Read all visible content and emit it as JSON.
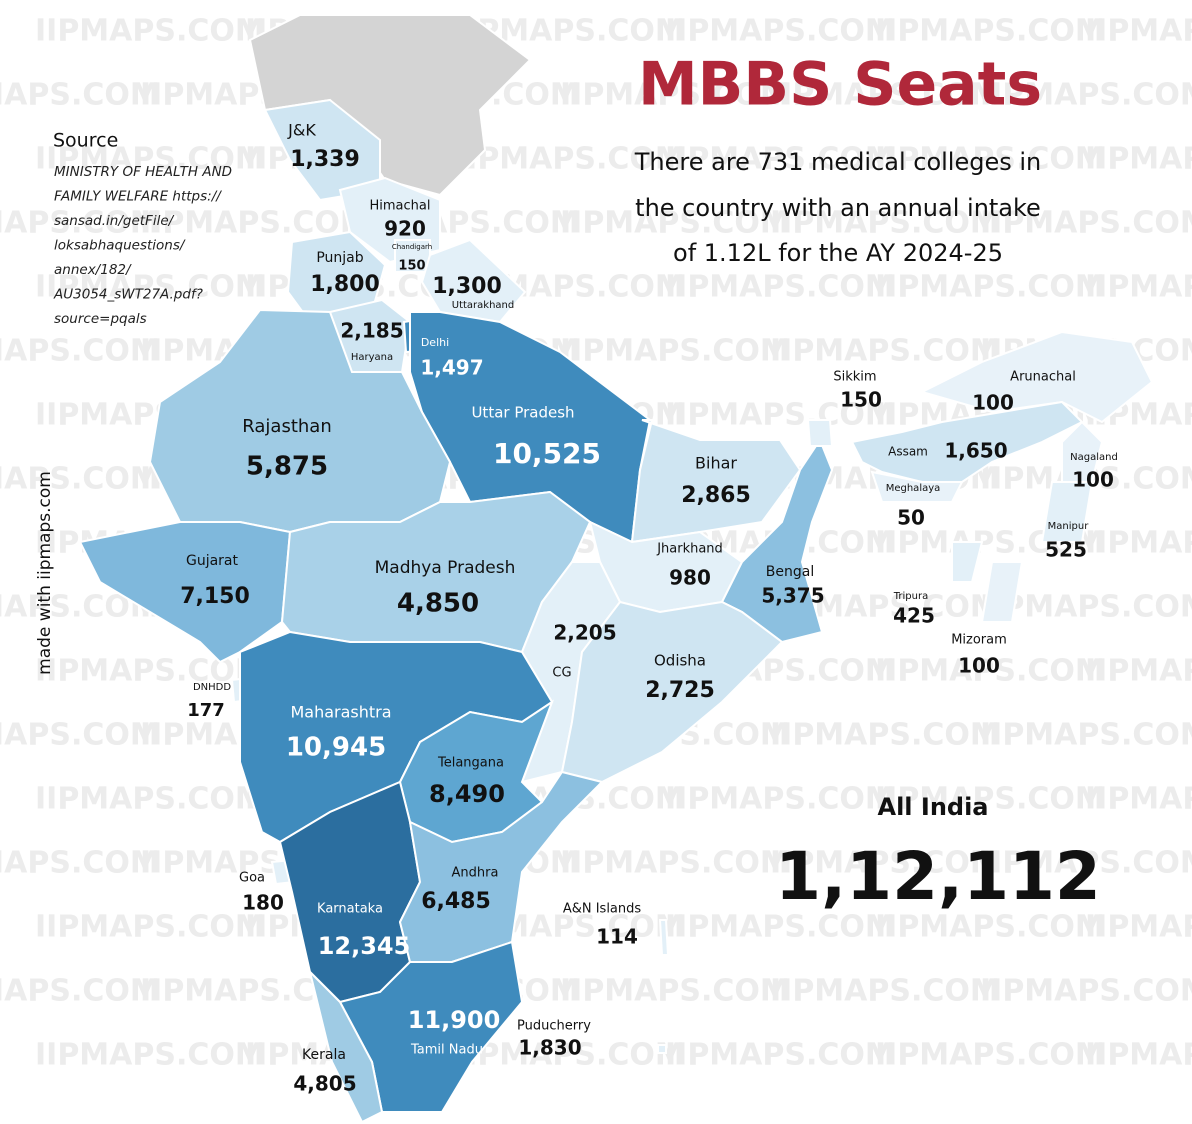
{
  "title": "MBBS Seats",
  "subtitle": [
    "There are 731 medical colleges in",
    "the country with an annual intake",
    "of 1.12L for the AY 2024-25"
  ],
  "source": {
    "heading": "Source",
    "lines": [
      "MINISTRY OF HEALTH AND",
      "FAMILY WELFARE https://",
      "sansad.in/getFile/",
      "loksabhaquestions/",
      "annex/182/",
      "AU3054_sWT27A.pdf?",
      "source=pqals"
    ]
  },
  "credit": "made with iipmaps.com",
  "watermark": "IIPMAPS.COM",
  "total": {
    "label": "All India",
    "value": "1,12,112"
  },
  "regions": [
    {
      "name": "J&K",
      "value": "1,339",
      "color": "#cfe5f2"
    },
    {
      "name": "Himachal",
      "value": "920",
      "color": "#e3f0f8"
    },
    {
      "name": "Chandigarh",
      "value": "150",
      "color": "#e3f0f8"
    },
    {
      "name": "Punjab",
      "value": "1,800",
      "color": "#cfe5f2"
    },
    {
      "name": "Uttarakhand",
      "value": "1,300",
      "color": "#e3f0f8"
    },
    {
      "name": "Haryana",
      "value": "2,185",
      "color": "#cfe5f2"
    },
    {
      "name": "Delhi",
      "value": "1,497",
      "color": "#3f8bbd"
    },
    {
      "name": "Uttar Pradesh",
      "value": "10,525",
      "color": "#3f8bbd"
    },
    {
      "name": "Rajasthan",
      "value": "5,875",
      "color": "#9fcbe4"
    },
    {
      "name": "Gujarat",
      "value": "7,150",
      "color": "#7fb8dc"
    },
    {
      "name": "Madhya Pradesh",
      "value": "4,850",
      "color": "#a9d1e8"
    },
    {
      "name": "Bihar",
      "value": "2,865",
      "color": "#cfe5f2"
    },
    {
      "name": "Jharkhand",
      "value": "980",
      "color": "#e3f0f8"
    },
    {
      "name": "Bengal",
      "value": "5,375",
      "color": "#8cc0e0"
    },
    {
      "name": "CG",
      "value": "2,205",
      "color": "#e3f0f8"
    },
    {
      "name": "Odisha",
      "value": "2,725",
      "color": "#cfe5f2"
    },
    {
      "name": "DNHDD",
      "value": "177",
      "color": "#e3f0f8"
    },
    {
      "name": "Maharashtra",
      "value": "10,945",
      "color": "#3f8bbd"
    },
    {
      "name": "Telangana",
      "value": "8,490",
      "color": "#5ea6d1"
    },
    {
      "name": "Goa",
      "value": "180",
      "color": "#e3f0f8"
    },
    {
      "name": "Karnataka",
      "value": "12,345",
      "color": "#2b6e9f"
    },
    {
      "name": "Andhra",
      "value": "6,485",
      "color": "#8cc0e0"
    },
    {
      "name": "A&N Islands",
      "value": "114",
      "color": "#e3f0f8"
    },
    {
      "name": "Tamil Nadu",
      "value": "11,900",
      "color": "#3f8bbd"
    },
    {
      "name": "Puducherry",
      "value": "1,830",
      "color": "#e3f0f8"
    },
    {
      "name": "Kerala",
      "value": "4,805",
      "color": "#9fcbe4"
    },
    {
      "name": "Sikkim",
      "value": "150",
      "color": "#e3f0f8"
    },
    {
      "name": "Arunachal",
      "value": "100",
      "color": "#e8f2f9"
    },
    {
      "name": "Assam",
      "value": "1,650",
      "color": "#cfe5f2"
    },
    {
      "name": "Nagaland",
      "value": "100",
      "color": "#e8f2f9"
    },
    {
      "name": "Meghalaya",
      "value": "50",
      "color": "#e8f2f9"
    },
    {
      "name": "Manipur",
      "value": "525",
      "color": "#e3f0f8"
    },
    {
      "name": "Tripura",
      "value": "425",
      "color": "#e3f0f8"
    },
    {
      "name": "Mizoram",
      "value": "100",
      "color": "#e8f2f9"
    }
  ]
}
